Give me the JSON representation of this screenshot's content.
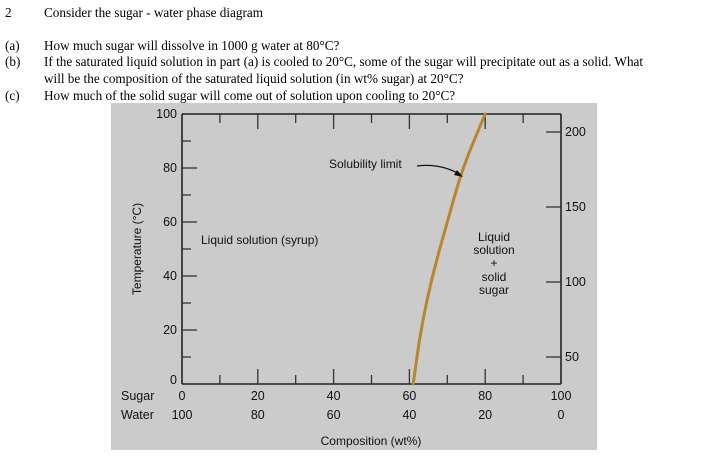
{
  "problem": {
    "number": "2",
    "intro": "Consider the sugar - water phase diagram",
    "parts": [
      {
        "label": "(a)",
        "lines": [
          "How much sugar will dissolve in 1000 g water at 80°C?"
        ]
      },
      {
        "label": "(b)",
        "lines": [
          "If the saturated liquid solution in part (a) is cooled to 20°C, some of the sugar will precipitate out as a solid. What",
          "will be the composition of the saturated liquid solution (in wt% sugar) at 20°C?"
        ]
      },
      {
        "label": "(c)",
        "lines": [
          "How much of the solid sugar will come out of solution upon cooling to 20°C?"
        ]
      }
    ]
  },
  "chart_data": {
    "type": "line",
    "title": "Sugar - water phase diagram",
    "xlabel": "Composition (wt%)",
    "ylabel": "Temperature (°C)",
    "y2label": "",
    "xlim": [
      0,
      100
    ],
    "ylim": [
      0,
      100
    ],
    "y2lim": [
      32,
      212
    ],
    "x_row_labels": [
      "Sugar",
      "Water"
    ],
    "x_ticks_sugar": [
      "0",
      "20",
      "40",
      "60",
      "80",
      "100"
    ],
    "x_ticks_water": [
      "100",
      "80",
      "60",
      "40",
      "20",
      "0"
    ],
    "y_ticks": [
      "0",
      "20",
      "40",
      "60",
      "80",
      "100"
    ],
    "y2_ticks": [
      "50",
      "100",
      "150",
      "200"
    ],
    "series": [
      {
        "name": "Solubility limit",
        "color": "#b8862b",
        "points": [
          {
            "x": 61,
            "y": 0
          },
          {
            "x": 63,
            "y": 20
          },
          {
            "x": 66,
            "y": 40
          },
          {
            "x": 70,
            "y": 60
          },
          {
            "x": 74,
            "y": 80
          },
          {
            "x": 80,
            "y": 100
          }
        ]
      }
    ],
    "annotations": [
      {
        "text": "Solubility limit",
        "arrow_to": {
          "x": 74,
          "y": 77
        }
      },
      {
        "text": "Liquid solution (syrup)"
      },
      {
        "text": "Liquid\nsolution\n+\nsolid\nsugar"
      }
    ],
    "grid": false,
    "legend": "none"
  },
  "labels": {
    "solubility_limit": "Solubility limit",
    "liquid_region": "Liquid solution (syrup)",
    "two_phase": [
      "Liquid",
      "solution",
      "+",
      "solid",
      "sugar"
    ]
  }
}
